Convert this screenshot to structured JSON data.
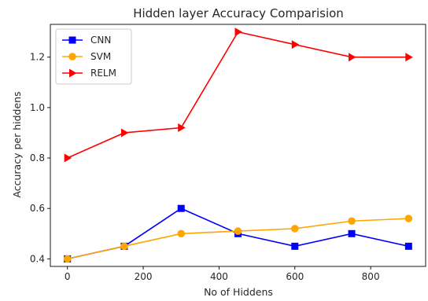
{
  "chart_data": {
    "type": "line",
    "title": "Hidden layer Accuracy Comparision",
    "xlabel": "No of Hiddens",
    "ylabel": "Accuracy per hiddens",
    "x": [
      0,
      150,
      300,
      450,
      600,
      750,
      900
    ],
    "xlim": [
      -45,
      945
    ],
    "ylim": [
      0.37,
      1.33
    ],
    "xticks": [
      0,
      200,
      400,
      600,
      800
    ],
    "yticks": [
      0.4,
      0.6,
      0.8,
      1.0,
      1.2
    ],
    "xtick_labels": [
      "0",
      "200",
      "400",
      "600",
      "800"
    ],
    "ytick_labels": [
      "0.4",
      "0.6",
      "0.8",
      "1.0",
      "1.2"
    ],
    "grid": false,
    "legend_position": "top-left",
    "series": [
      {
        "name": "CNN",
        "color": "#0000ff",
        "marker": "square",
        "values": [
          0.4,
          0.45,
          0.6,
          0.5,
          0.45,
          0.5,
          0.45
        ]
      },
      {
        "name": "SVM",
        "color": "#ffa500",
        "marker": "circle",
        "values": [
          0.4,
          0.45,
          0.5,
          0.51,
          0.52,
          0.55,
          0.56
        ]
      },
      {
        "name": "RELM",
        "color": "#ff0000",
        "marker": "triangle-right",
        "values": [
          0.8,
          0.9,
          0.92,
          1.3,
          1.25,
          1.2,
          1.2
        ]
      }
    ]
  }
}
